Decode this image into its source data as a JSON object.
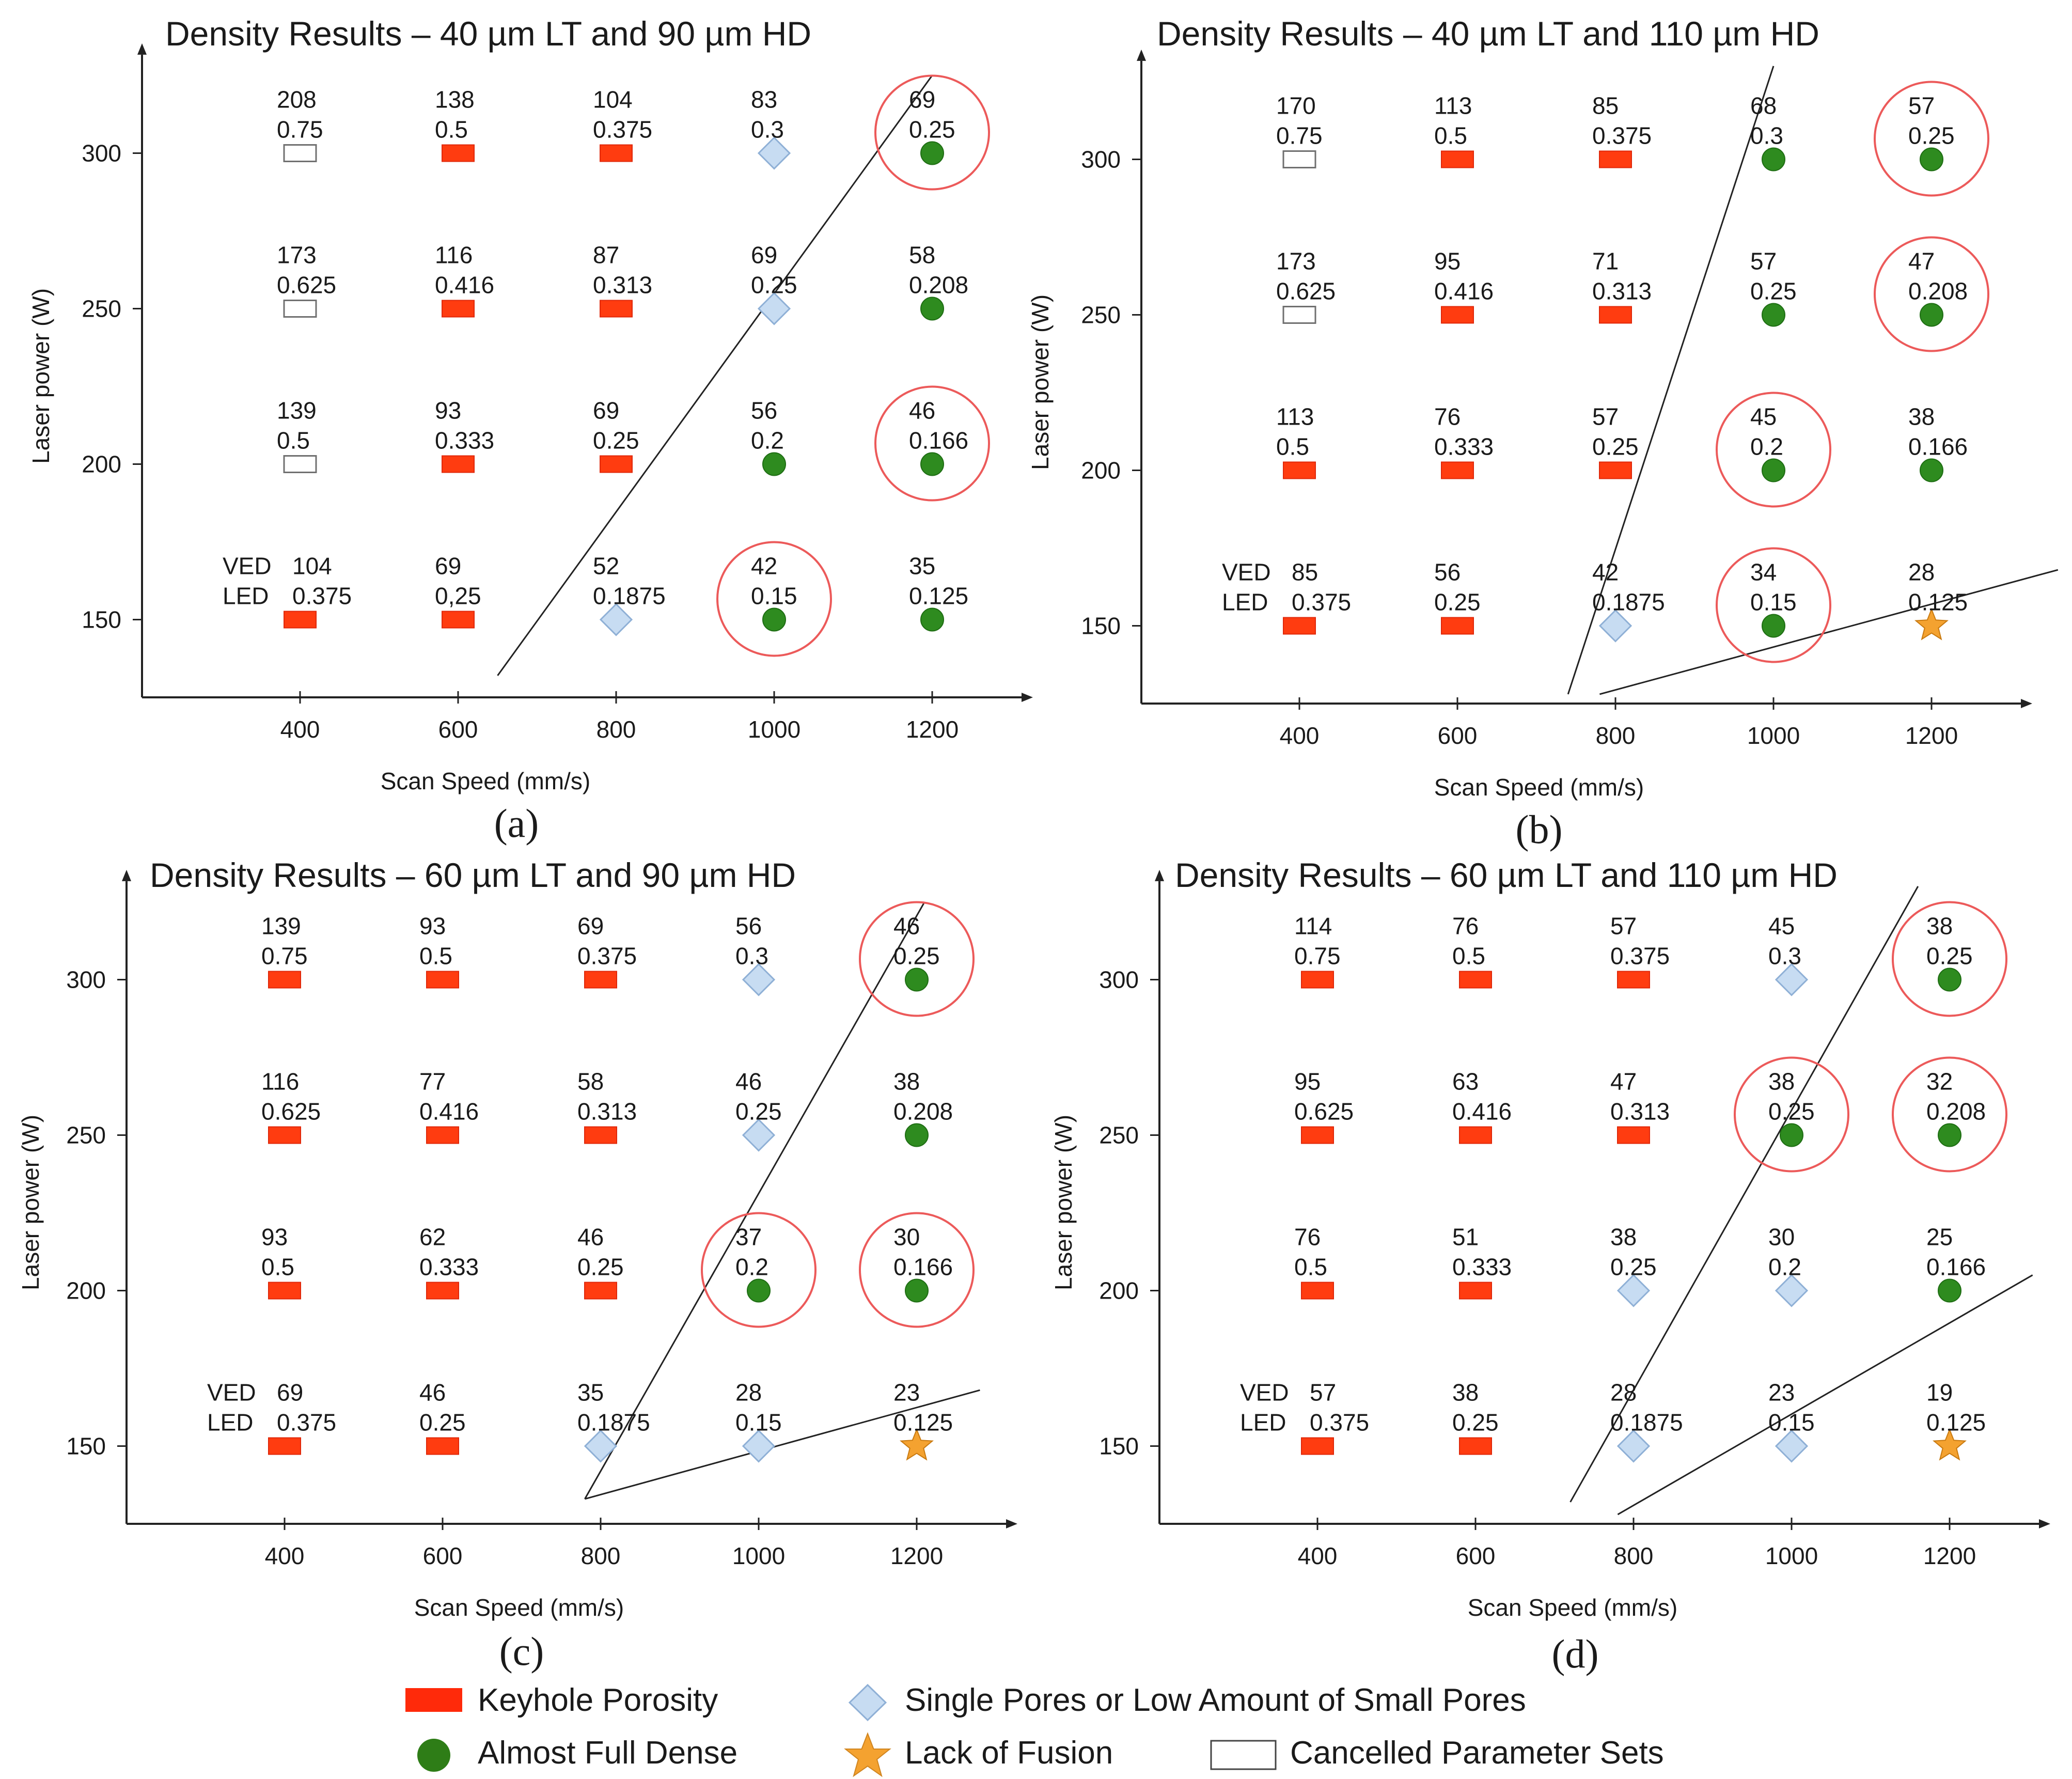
{
  "colors": {
    "keyhole": "#ff3c10",
    "keyhole_stroke": "#e0280a",
    "dense": "#2e8b1f",
    "dense_stroke": "#1f6e14",
    "pores": "#c7dcf2",
    "pores_stroke": "#8fb0d6",
    "lack": "#f4a230",
    "lack_stroke": "#c97a10",
    "cancelled": "#ffffff",
    "cancelled_stroke": "#707070",
    "circle": "#ec5a5a",
    "line": "#222222",
    "axis": "#222222"
  },
  "legend": {
    "keyhole": "Keyhole Porosity",
    "dense": "Almost Full Dense",
    "pores": "Single Pores or Low Amount of Small Pores",
    "lack": "Lack of Fusion",
    "cancelled": "Cancelled Parameter Sets"
  },
  "chart_data": [
    {
      "panel": "(a)",
      "type": "scatter",
      "title": "Density Results – 40 µm LT and 90 µm HD",
      "xlabel": "Scan Speed (mm/s)",
      "ylabel": "Laser power (W)",
      "xticks": [
        400,
        600,
        800,
        1000,
        1200
      ],
      "yticks": [
        150,
        200,
        250,
        300
      ],
      "xlim": [
        200,
        1300
      ],
      "ylim": [
        125,
        330
      ],
      "row_labels": [
        "VED",
        "LED"
      ],
      "points": [
        {
          "x": 400,
          "y": 300,
          "cat": "cancelled",
          "ved": "208",
          "led": "0.75"
        },
        {
          "x": 600,
          "y": 300,
          "cat": "keyhole",
          "ved": "138",
          "led": "0.5"
        },
        {
          "x": 800,
          "y": 300,
          "cat": "keyhole",
          "ved": "104",
          "led": "0.375"
        },
        {
          "x": 1000,
          "y": 300,
          "cat": "pores",
          "ved": "83",
          "led": "0.3"
        },
        {
          "x": 1200,
          "y": 300,
          "cat": "dense",
          "ved": "69",
          "led": "0.25",
          "circled": true
        },
        {
          "x": 400,
          "y": 250,
          "cat": "cancelled",
          "ved": "173",
          "led": "0.625"
        },
        {
          "x": 600,
          "y": 250,
          "cat": "keyhole",
          "ved": "116",
          "led": "0.416"
        },
        {
          "x": 800,
          "y": 250,
          "cat": "keyhole",
          "ved": "87",
          "led": "0.313"
        },
        {
          "x": 1000,
          "y": 250,
          "cat": "pores",
          "ved": "69",
          "led": "0.25"
        },
        {
          "x": 1200,
          "y": 250,
          "cat": "dense",
          "ved": "58",
          "led": "0.208"
        },
        {
          "x": 400,
          "y": 200,
          "cat": "cancelled",
          "ved": "139",
          "led": "0.5"
        },
        {
          "x": 600,
          "y": 200,
          "cat": "keyhole",
          "ved": "93",
          "led": "0.333"
        },
        {
          "x": 800,
          "y": 200,
          "cat": "keyhole",
          "ved": "69",
          "led": "0.25"
        },
        {
          "x": 1000,
          "y": 200,
          "cat": "dense",
          "ved": "56",
          "led": "0.2"
        },
        {
          "x": 1200,
          "y": 200,
          "cat": "dense",
          "ved": "46",
          "led": "0.166",
          "circled": true
        },
        {
          "x": 400,
          "y": 150,
          "cat": "keyhole",
          "ved": "104",
          "led": "0.375"
        },
        {
          "x": 600,
          "y": 150,
          "cat": "keyhole",
          "ved": "69",
          "led": "0,25"
        },
        {
          "x": 800,
          "y": 150,
          "cat": "pores",
          "ved": "52",
          "led": "0.1875"
        },
        {
          "x": 1000,
          "y": 150,
          "cat": "dense",
          "ved": "42",
          "led": "0.15",
          "circled": true
        },
        {
          "x": 1200,
          "y": 150,
          "cat": "dense",
          "ved": "35",
          "led": "0.125"
        }
      ],
      "boundaries": [
        [
          [
            650,
            132
          ],
          [
            1200,
            325
          ]
        ]
      ]
    },
    {
      "panel": "(b)",
      "type": "scatter",
      "title": "Density Results – 40 µm LT and 110 µm HD",
      "xlabel": "Scan Speed (mm/s)",
      "ylabel": "Laser power (W)",
      "xticks": [
        400,
        600,
        800,
        1000,
        1200
      ],
      "yticks": [
        150,
        200,
        250,
        300
      ],
      "xlim": [
        200,
        1300
      ],
      "ylim": [
        125,
        330
      ],
      "row_labels": [
        "VED",
        "LED"
      ],
      "points": [
        {
          "x": 400,
          "y": 300,
          "cat": "cancelled",
          "ved": "170",
          "led": "0.75"
        },
        {
          "x": 600,
          "y": 300,
          "cat": "keyhole",
          "ved": "113",
          "led": "0.5"
        },
        {
          "x": 800,
          "y": 300,
          "cat": "keyhole",
          "ved": "85",
          "led": "0.375"
        },
        {
          "x": 1000,
          "y": 300,
          "cat": "dense",
          "ved": "68",
          "led": "0.3"
        },
        {
          "x": 1200,
          "y": 300,
          "cat": "dense",
          "ved": "57",
          "led": "0.25",
          "circled": true
        },
        {
          "x": 400,
          "y": 250,
          "cat": "cancelled",
          "ved": "173",
          "led": "0.625"
        },
        {
          "x": 600,
          "y": 250,
          "cat": "keyhole",
          "ved": "95",
          "led": "0.416"
        },
        {
          "x": 800,
          "y": 250,
          "cat": "keyhole",
          "ved": "71",
          "led": "0.313"
        },
        {
          "x": 1000,
          "y": 250,
          "cat": "dense",
          "ved": "57",
          "led": "0.25"
        },
        {
          "x": 1200,
          "y": 250,
          "cat": "dense",
          "ved": "47",
          "led": "0.208",
          "circled": true
        },
        {
          "x": 400,
          "y": 200,
          "cat": "keyhole",
          "ved": "113",
          "led": "0.5"
        },
        {
          "x": 600,
          "y": 200,
          "cat": "keyhole",
          "ved": "76",
          "led": "0.333"
        },
        {
          "x": 800,
          "y": 200,
          "cat": "keyhole",
          "ved": "57",
          "led": "0.25"
        },
        {
          "x": 1000,
          "y": 200,
          "cat": "dense",
          "ved": "45",
          "led": "0.2",
          "circled": true
        },
        {
          "x": 1200,
          "y": 200,
          "cat": "dense",
          "ved": "38",
          "led": "0.166"
        },
        {
          "x": 400,
          "y": 150,
          "cat": "keyhole",
          "ved": "85",
          "led": "0.375"
        },
        {
          "x": 600,
          "y": 150,
          "cat": "keyhole",
          "ved": "56",
          "led": "0.25"
        },
        {
          "x": 800,
          "y": 150,
          "cat": "pores",
          "ved": "42",
          "led": "0.1875"
        },
        {
          "x": 1000,
          "y": 150,
          "cat": "dense",
          "ved": "34",
          "led": "0.15",
          "circled": true
        },
        {
          "x": 1200,
          "y": 150,
          "cat": "lack",
          "ved": "28",
          "led": "0.125"
        }
      ],
      "boundaries": [
        [
          [
            740,
            128
          ],
          [
            1000,
            330
          ]
        ],
        [
          [
            780,
            128
          ],
          [
            1360,
            168
          ]
        ]
      ]
    },
    {
      "panel": "(c)",
      "type": "scatter",
      "title": "Density Results – 60 µm LT and 90 µm HD",
      "xlabel": "Scan Speed (mm/s)",
      "ylabel": "Laser power (W)",
      "xticks": [
        400,
        600,
        800,
        1000,
        1200
      ],
      "yticks": [
        150,
        200,
        250,
        300
      ],
      "xlim": [
        200,
        1300
      ],
      "ylim": [
        125,
        330
      ],
      "row_labels": [
        "VED",
        "LED"
      ],
      "points": [
        {
          "x": 400,
          "y": 300,
          "cat": "keyhole",
          "ved": "139",
          "led": "0.75"
        },
        {
          "x": 600,
          "y": 300,
          "cat": "keyhole",
          "ved": "93",
          "led": "0.5"
        },
        {
          "x": 800,
          "y": 300,
          "cat": "keyhole",
          "ved": "69",
          "led": "0.375"
        },
        {
          "x": 1000,
          "y": 300,
          "cat": "pores",
          "ved": "56",
          "led": "0.3"
        },
        {
          "x": 1200,
          "y": 300,
          "cat": "dense",
          "ved": "46",
          "led": "0.25",
          "circled": true
        },
        {
          "x": 400,
          "y": 250,
          "cat": "keyhole",
          "ved": "116",
          "led": "0.625"
        },
        {
          "x": 600,
          "y": 250,
          "cat": "keyhole",
          "ved": "77",
          "led": "0.416"
        },
        {
          "x": 800,
          "y": 250,
          "cat": "keyhole",
          "ved": "58",
          "led": "0.313"
        },
        {
          "x": 1000,
          "y": 250,
          "cat": "pores",
          "ved": "46",
          "led": "0.25"
        },
        {
          "x": 1200,
          "y": 250,
          "cat": "dense",
          "ved": "38",
          "led": "0.208"
        },
        {
          "x": 400,
          "y": 200,
          "cat": "keyhole",
          "ved": "93",
          "led": "0.5"
        },
        {
          "x": 600,
          "y": 200,
          "cat": "keyhole",
          "ved": "62",
          "led": "0.333"
        },
        {
          "x": 800,
          "y": 200,
          "cat": "keyhole",
          "ved": "46",
          "led": "0.25"
        },
        {
          "x": 1000,
          "y": 200,
          "cat": "dense",
          "ved": "37",
          "led": "0.2",
          "circled": true
        },
        {
          "x": 1200,
          "y": 200,
          "cat": "dense",
          "ved": "30",
          "led": "0.166",
          "circled": true
        },
        {
          "x": 400,
          "y": 150,
          "cat": "keyhole",
          "ved": "69",
          "led": "0.375"
        },
        {
          "x": 600,
          "y": 150,
          "cat": "keyhole",
          "ved": "46",
          "led": "0.25"
        },
        {
          "x": 800,
          "y": 150,
          "cat": "pores",
          "ved": "35",
          "led": "0.1875"
        },
        {
          "x": 1000,
          "y": 150,
          "cat": "pores",
          "ved": "28",
          "led": "0.15"
        },
        {
          "x": 1200,
          "y": 150,
          "cat": "lack",
          "ved": "23",
          "led": "0.125"
        }
      ],
      "boundaries": [
        [
          [
            780,
            133
          ],
          [
            1210,
            325
          ]
        ],
        [
          [
            780,
            133
          ],
          [
            1280,
            168
          ]
        ]
      ]
    },
    {
      "panel": "(d)",
      "type": "scatter",
      "title": "Density Results – 60 µm LT and 110 µm HD",
      "xlabel": "Scan Speed (mm/s)",
      "ylabel": "Laser power (W)",
      "xticks": [
        400,
        600,
        800,
        1000,
        1200
      ],
      "yticks": [
        150,
        200,
        250,
        300
      ],
      "xlim": [
        200,
        1300
      ],
      "ylim": [
        125,
        330
      ],
      "row_labels": [
        "VED",
        "LED"
      ],
      "points": [
        {
          "x": 400,
          "y": 300,
          "cat": "keyhole",
          "ved": "114",
          "led": "0.75"
        },
        {
          "x": 600,
          "y": 300,
          "cat": "keyhole",
          "ved": "76",
          "led": "0.5"
        },
        {
          "x": 800,
          "y": 300,
          "cat": "keyhole",
          "ved": "57",
          "led": "0.375"
        },
        {
          "x": 1000,
          "y": 300,
          "cat": "pores",
          "ved": "45",
          "led": "0.3"
        },
        {
          "x": 1200,
          "y": 300,
          "cat": "dense",
          "ved": "38",
          "led": "0.25",
          "circled": true
        },
        {
          "x": 400,
          "y": 250,
          "cat": "keyhole",
          "ved": "95",
          "led": "0.625"
        },
        {
          "x": 600,
          "y": 250,
          "cat": "keyhole",
          "ved": "63",
          "led": "0.416"
        },
        {
          "x": 800,
          "y": 250,
          "cat": "keyhole",
          "ved": "47",
          "led": "0.313"
        },
        {
          "x": 1000,
          "y": 250,
          "cat": "dense",
          "ved": "38",
          "led": "0.25",
          "circled": true
        },
        {
          "x": 1200,
          "y": 250,
          "cat": "dense",
          "ved": "32",
          "led": "0.208",
          "circled": true
        },
        {
          "x": 400,
          "y": 200,
          "cat": "keyhole",
          "ved": "76",
          "led": "0.5"
        },
        {
          "x": 600,
          "y": 200,
          "cat": "keyhole",
          "ved": "51",
          "led": "0.333"
        },
        {
          "x": 800,
          "y": 200,
          "cat": "pores",
          "ved": "38",
          "led": "0.25"
        },
        {
          "x": 1000,
          "y": 200,
          "cat": "pores",
          "ved": "30",
          "led": "0.2"
        },
        {
          "x": 1200,
          "y": 200,
          "cat": "dense",
          "ved": "25",
          "led": "0.166"
        },
        {
          "x": 400,
          "y": 150,
          "cat": "keyhole",
          "ved": "57",
          "led": "0.375"
        },
        {
          "x": 600,
          "y": 150,
          "cat": "keyhole",
          "ved": "38",
          "led": "0.25"
        },
        {
          "x": 800,
          "y": 150,
          "cat": "pores",
          "ved": "28",
          "led": "0.1875"
        },
        {
          "x": 1000,
          "y": 150,
          "cat": "pores",
          "ved": "23",
          "led": "0.15"
        },
        {
          "x": 1200,
          "y": 150,
          "cat": "lack",
          "ved": "19",
          "led": "0.125"
        }
      ],
      "boundaries": [
        [
          [
            720,
            132
          ],
          [
            1160,
            330
          ]
        ],
        [
          [
            780,
            128
          ],
          [
            1305,
            205
          ]
        ]
      ]
    }
  ]
}
